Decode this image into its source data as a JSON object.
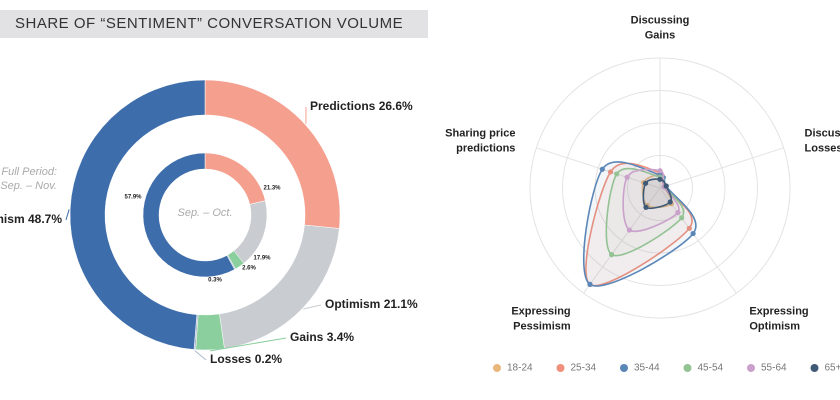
{
  "chart_data": [
    {
      "type": "donut",
      "title": "SHARE OF “SENTIMENT” CONVERSATION VOLUME",
      "categories": [
        "Predictions",
        "Optimism",
        "Gains",
        "Losses",
        "Pessimism"
      ],
      "colors": [
        "#f5a08f",
        "#c9cdd1",
        "#8ccf9e",
        "#a9b8cc",
        "#3e6dab"
      ],
      "series": [
        {
          "label_lines": [
            "Full Period:",
            "Sep. – Nov."
          ],
          "values": [
            26.6,
            21.1,
            3.4,
            0.2,
            48.7
          ],
          "value_labels": [
            "26.6%",
            "21.1%",
            "3.4%",
            "0.2%",
            "48.7%"
          ]
        },
        {
          "label_lines": [
            "Sep. – Oct."
          ],
          "values": [
            21.3,
            17.9,
            2.6,
            0.3,
            57.9
          ],
          "value_labels": [
            "21.3%",
            "17.9%",
            "2.6%",
            "0.3%",
            "57.9%"
          ]
        }
      ]
    },
    {
      "type": "radar",
      "axes": [
        [
          "Discussing",
          "Gains"
        ],
        [
          "Discussing",
          "Losses"
        ],
        [
          "Expressing",
          "Optimism"
        ],
        [
          "Expressing",
          "Pessimism"
        ],
        [
          "Sharing price",
          "predictions"
        ]
      ],
      "rlim": [
        0,
        60
      ],
      "series": [
        {
          "name": "18-24",
          "color": "#e9b77c",
          "values": [
            6,
            2,
            9,
            10,
            8
          ]
        },
        {
          "name": "25-34",
          "color": "#f0907b",
          "values": [
            7,
            2,
            23,
            55,
            24
          ]
        },
        {
          "name": "35-44",
          "color": "#5b87b8",
          "values": [
            6,
            3,
            26,
            55,
            28
          ]
        },
        {
          "name": "45-54",
          "color": "#93c293",
          "values": [
            5,
            2,
            17,
            38,
            21
          ]
        },
        {
          "name": "55-64",
          "color": "#c9a1cb",
          "values": [
            8,
            2,
            14,
            24,
            16
          ]
        },
        {
          "name": "65+",
          "color": "#3e5a77",
          "values": [
            4,
            3,
            8,
            11,
            7
          ]
        }
      ]
    }
  ]
}
